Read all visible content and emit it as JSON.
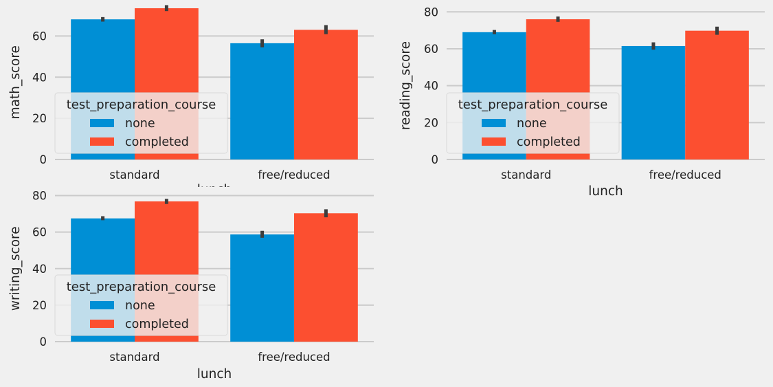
{
  "chart_data": [
    {
      "type": "bar",
      "xlabel": "lunch",
      "ylabel": "math_score",
      "categories": [
        "standard",
        "free/reduced"
      ],
      "ylim": [
        0,
        75
      ],
      "yticks": [
        0,
        20,
        40,
        60
      ],
      "grid": true,
      "legend": {
        "title": "test_preparation_course",
        "placement": "lower-left",
        "entries": [
          "none",
          "completed"
        ]
      },
      "series": [
        {
          "name": "none",
          "color": "#008fd5",
          "values": [
            68.1,
            56.5
          ],
          "ci_low": [
            67.0,
            54.5
          ],
          "ci_high": [
            69.2,
            58.4
          ]
        },
        {
          "name": "completed",
          "color": "#fc4f30",
          "values": [
            73.5,
            63.0
          ],
          "ci_low": [
            72.1,
            60.9
          ],
          "ci_high": [
            75.0,
            65.3
          ]
        }
      ]
    },
    {
      "type": "bar",
      "xlabel": "lunch",
      "ylabel": "reading_score",
      "categories": [
        "standard",
        "free/reduced"
      ],
      "ylim": [
        0,
        80
      ],
      "yticks": [
        0,
        20,
        40,
        60,
        80
      ],
      "grid": true,
      "legend": {
        "title": "test_preparation_course",
        "placement": "lower-left",
        "entries": [
          "none",
          "completed"
        ]
      },
      "series": [
        {
          "name": "none",
          "color": "#008fd5",
          "values": [
            69.0,
            61.5
          ],
          "ci_low": [
            67.9,
            59.5
          ],
          "ci_high": [
            70.2,
            63.5
          ]
        },
        {
          "name": "completed",
          "color": "#fc4f30",
          "values": [
            76.0,
            69.8
          ],
          "ci_low": [
            74.6,
            67.6
          ],
          "ci_high": [
            77.5,
            72.0
          ]
        }
      ]
    },
    {
      "type": "bar",
      "xlabel": "lunch",
      "ylabel": "writing_score",
      "categories": [
        "standard",
        "free/reduced"
      ],
      "ylim": [
        0,
        80
      ],
      "yticks": [
        0,
        20,
        40,
        60,
        80
      ],
      "grid": true,
      "legend": {
        "title": "test_preparation_course",
        "placement": "lower-left",
        "entries": [
          "none",
          "completed"
        ]
      },
      "series": [
        {
          "name": "none",
          "color": "#008fd5",
          "values": [
            67.5,
            58.7
          ],
          "ci_low": [
            66.5,
            56.9
          ],
          "ci_high": [
            68.7,
            60.7
          ]
        },
        {
          "name": "completed",
          "color": "#fc4f30",
          "values": [
            76.8,
            70.3
          ],
          "ci_low": [
            75.4,
            68.1
          ],
          "ci_high": [
            78.2,
            72.5
          ]
        }
      ]
    }
  ]
}
